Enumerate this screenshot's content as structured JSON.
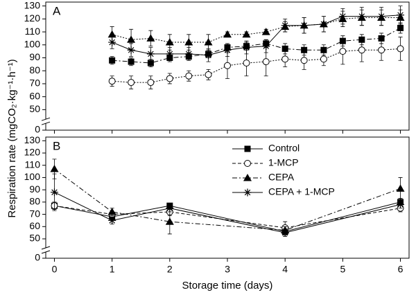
{
  "chart_data": [
    {
      "type": "line",
      "panel": "A",
      "ylabel": "Respiration rate (mgCO₂·kg⁻¹·h⁻¹)",
      "x": [
        1,
        1.33,
        1.67,
        2,
        2.33,
        2.67,
        3,
        3.33,
        3.67,
        4,
        4.33,
        4.67,
        5,
        5.33,
        5.67,
        6
      ],
      "xlim": [
        -0.15,
        6.15
      ],
      "ylim": [
        0,
        133
      ],
      "ybreak": [
        0,
        50
      ],
      "yticks": [
        0,
        50,
        60,
        70,
        80,
        90,
        100,
        110,
        120,
        130
      ],
      "series": [
        {
          "color": "#000000",
          "marker": "square",
          "dash": "dashdot",
          "values": [
            88,
            87,
            86,
            90,
            91,
            93,
            98,
            99,
            101,
            97,
            96,
            96,
            103,
            104,
            105,
            113
          ],
          "errors": [
            3,
            3,
            3,
            3,
            3,
            3,
            3,
            3,
            3,
            4,
            4,
            4,
            4,
            4,
            4,
            4
          ]
        },
        {
          "color": "#000000",
          "marker": "circle",
          "dash": "dotted",
          "values": [
            72,
            71,
            71,
            74,
            76,
            77,
            84,
            86,
            87,
            89,
            88,
            89,
            95,
            96,
            96,
            97
          ],
          "errors": [
            4,
            5,
            5,
            4,
            4,
            4,
            10,
            10,
            11,
            6,
            7,
            5,
            10,
            9,
            8,
            9
          ]
        },
        {
          "color": "#000000",
          "marker": "triangle",
          "dash": "dotted",
          "values": [
            108,
            104,
            105,
            102,
            102,
            102,
            108,
            108,
            110,
            114,
            115,
            116,
            120,
            121,
            121,
            121
          ],
          "errors": [
            6,
            8,
            6,
            6,
            6,
            6,
            2,
            2,
            2,
            4,
            6,
            6,
            6,
            6,
            6,
            6
          ]
        },
        {
          "color": "#000000",
          "marker": "asterisk",
          "dash": "solid",
          "values": [
            102,
            96,
            93,
            93,
            93,
            92,
            96,
            98,
            99,
            115,
            115,
            116,
            122,
            122,
            122,
            123
          ],
          "errors": [
            5,
            5,
            5,
            5,
            5,
            5,
            5,
            5,
            5,
            5,
            6,
            6,
            6,
            7,
            7,
            7
          ]
        }
      ]
    },
    {
      "type": "line",
      "panel": "B",
      "xlabel": "Storage time (days)",
      "x": [
        0,
        1,
        2,
        4,
        6
      ],
      "xlim": [
        -0.15,
        6.15
      ],
      "xticks": [
        0,
        1,
        2,
        3,
        4,
        5,
        6
      ],
      "ylim": [
        0,
        133
      ],
      "ybreak": [
        0,
        50
      ],
      "yticks": [
        0,
        50,
        60,
        70,
        80,
        90,
        100,
        110,
        120,
        130
      ],
      "legend": "upper center",
      "series": [
        {
          "name": "Control",
          "color": "#000000",
          "marker": "square",
          "dash": "solid",
          "values": [
            77,
            68,
            77,
            56,
            80
          ],
          "errors": [
            3,
            2,
            2,
            3,
            3
          ]
        },
        {
          "name": "1-MCP",
          "color": "#000000",
          "marker": "circle",
          "dash": "dashed",
          "values": [
            77,
            70,
            72,
            59,
            75
          ],
          "errors": [
            3,
            2,
            3,
            5,
            3
          ]
        },
        {
          "name": "CEPA",
          "color": "#000000",
          "marker": "triangle",
          "dash": "dashdot",
          "values": [
            107,
            72,
            64,
            57,
            91
          ],
          "errors": [
            8,
            3,
            10,
            3,
            9
          ]
        },
        {
          "name": "CEPA + 1-MCP",
          "color": "#000000",
          "marker": "asterisk",
          "dash": "solid",
          "values": [
            88,
            65,
            75,
            55,
            78
          ],
          "errors": [
            15,
            3,
            3,
            3,
            3
          ]
        }
      ]
    }
  ]
}
